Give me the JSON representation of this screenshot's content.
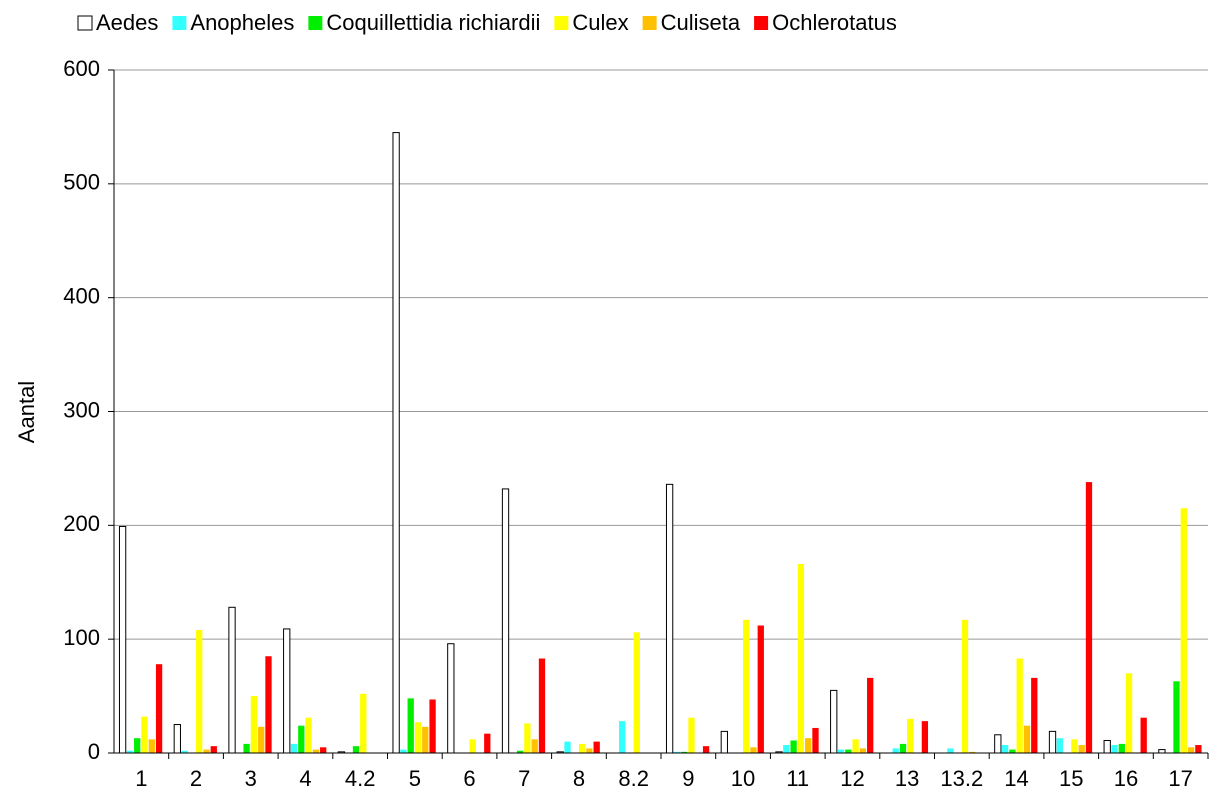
{
  "chart_data": {
    "type": "bar",
    "y_label": "Aantal",
    "categories": [
      "1",
      "2",
      "3",
      "4",
      "4.2",
      "5",
      "6",
      "7",
      "8",
      "8.2",
      "9",
      "10",
      "11",
      "12",
      "13",
      "13.2",
      "14",
      "15",
      "16",
      "17"
    ],
    "series": [
      {
        "name": "Aedes",
        "color": "#ffffff",
        "values": [
          199,
          25,
          128,
          109,
          1,
          545,
          96,
          232,
          1,
          0,
          236,
          19,
          1,
          55,
          0,
          0,
          16,
          19,
          11,
          3
        ]
      },
      {
        "name": "Anopheles",
        "color": "#33ffff",
        "values": [
          2,
          2,
          0,
          8,
          0,
          3,
          0,
          0,
          10,
          28,
          1,
          0,
          7,
          3,
          4,
          4,
          7,
          13,
          7,
          0
        ]
      },
      {
        "name": "Coquillettidia richiardii",
        "color": "#00ee00",
        "values": [
          13,
          0,
          8,
          24,
          6,
          48,
          0,
          2,
          0,
          0,
          1,
          0,
          11,
          3,
          8,
          0,
          3,
          0,
          8,
          63
        ]
      },
      {
        "name": "Culex",
        "color": "#ffff00",
        "values": [
          32,
          108,
          50,
          31,
          52,
          27,
          12,
          26,
          8,
          106,
          31,
          117,
          166,
          12,
          30,
          117,
          83,
          12,
          70,
          215
        ]
      },
      {
        "name": "Culiseta",
        "color": "#ffc000",
        "values": [
          12,
          3,
          23,
          3,
          0,
          23,
          0,
          12,
          4,
          0,
          0,
          5,
          13,
          4,
          0,
          1,
          24,
          7,
          0,
          5
        ]
      },
      {
        "name": "Ochlerotatus",
        "color": "#ff0000",
        "values": [
          78,
          6,
          85,
          5,
          0,
          47,
          17,
          83,
          10,
          0,
          6,
          112,
          22,
          66,
          28,
          0,
          66,
          238,
          31,
          7
        ]
      }
    ],
    "ylim": [
      0,
      600
    ],
    "yticks": [
      0,
      100,
      200,
      300,
      400,
      500,
      600
    ],
    "grid": true
  }
}
